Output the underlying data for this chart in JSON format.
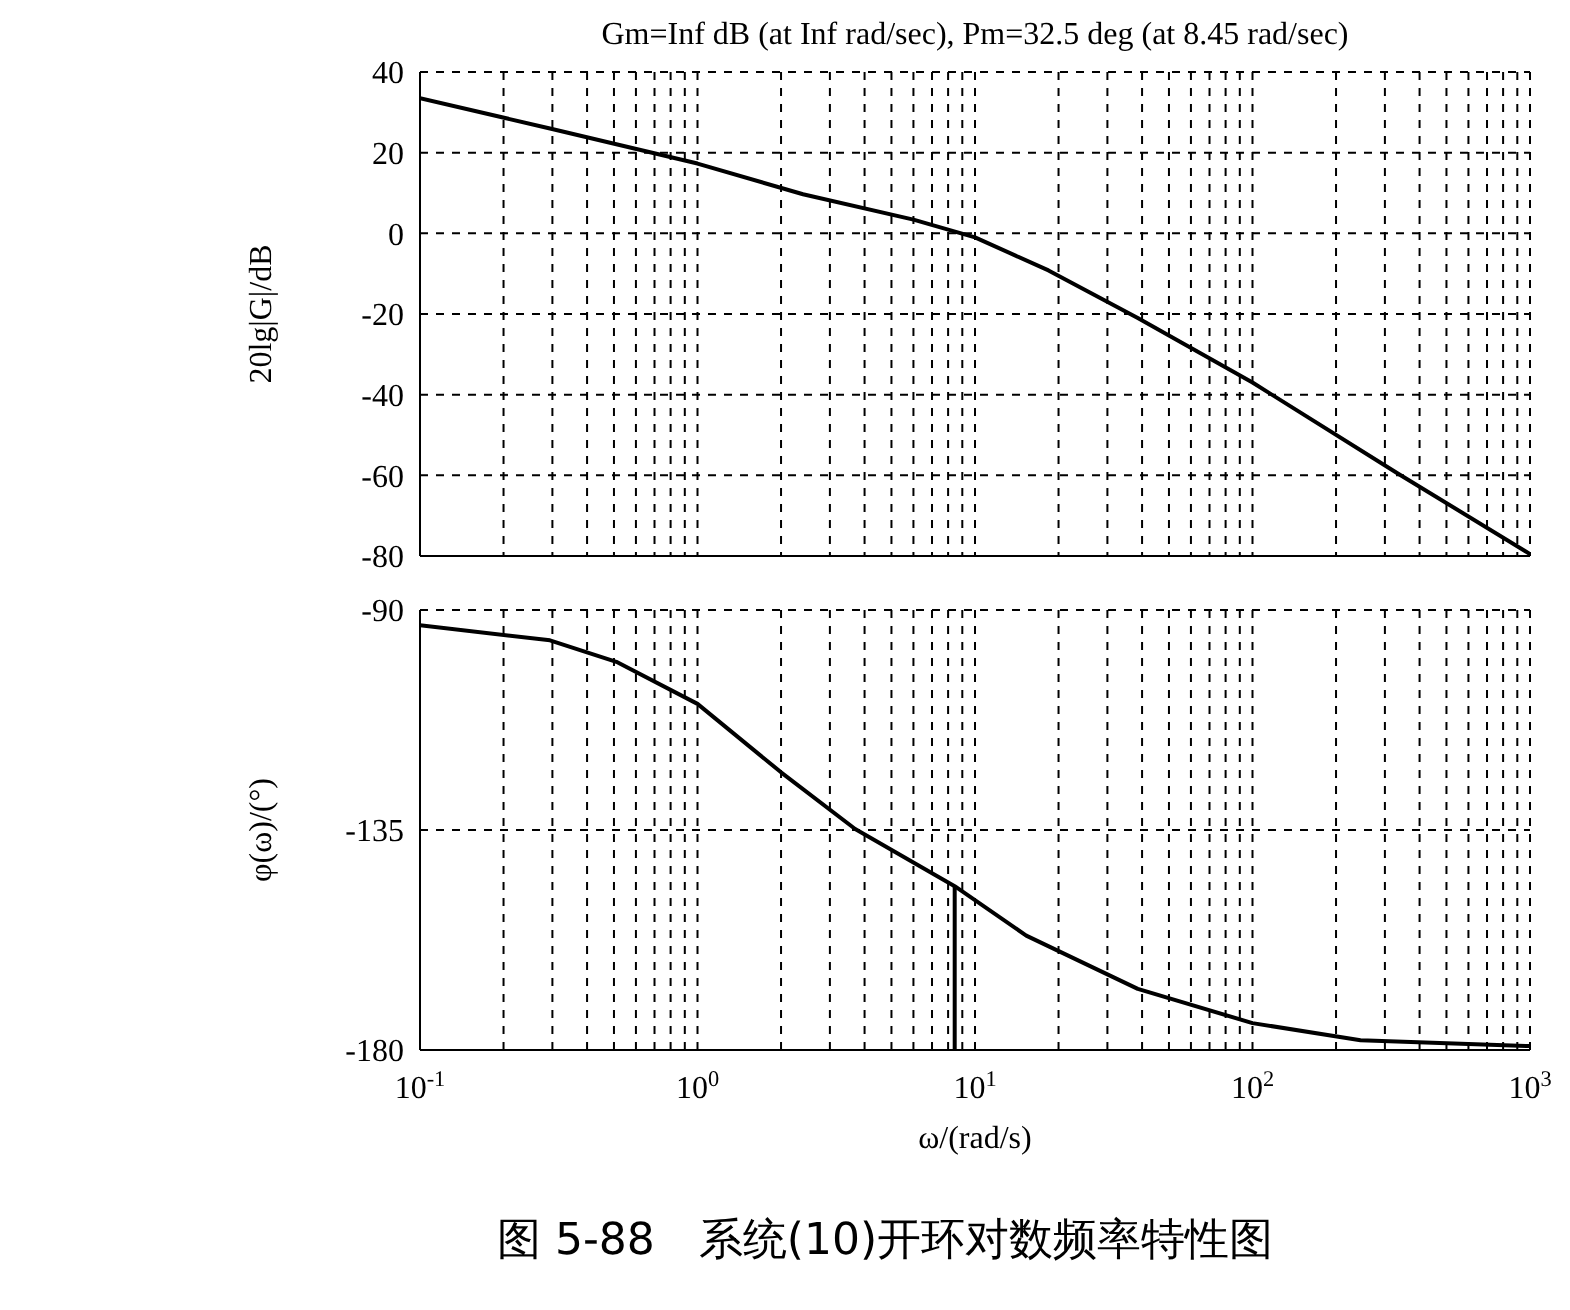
{
  "chart_data": [
    {
      "type": "line",
      "title": "Gm=Inf dB (at Inf rad/sec), Pm=32.5 deg (at 8.45 rad/sec)",
      "ylabel": "20lg|G|/dB",
      "series": [
        {
          "color": "#000000",
          "x": [
            0.1,
            0.294,
            1,
            2.4,
            6.0,
            10,
            18.4,
            38.6,
            100,
            335,
            1000
          ],
          "values": [
            33.5,
            26,
            17.3,
            9.7,
            3.4,
            -1,
            -9.2,
            -21,
            -37,
            -59.6,
            -79.5
          ]
        }
      ],
      "xlim": [
        0.1,
        1000
      ],
      "xticks": [
        {
          "value": 0.1,
          "label": null
        },
        {
          "value": 0.2,
          "label": null
        },
        {
          "value": 0.3,
          "label": null
        },
        {
          "value": 0.4,
          "label": null
        },
        {
          "value": 0.5,
          "label": null
        },
        {
          "value": 0.6,
          "label": null
        },
        {
          "value": 0.7,
          "label": null
        },
        {
          "value": 0.8,
          "label": null
        },
        {
          "value": 0.9,
          "label": null
        },
        {
          "value": 1,
          "label": null
        },
        {
          "value": 2,
          "label": null
        },
        {
          "value": 3,
          "label": null
        },
        {
          "value": 4,
          "label": null
        },
        {
          "value": 5,
          "label": null
        },
        {
          "value": 6,
          "label": null
        },
        {
          "value": 7,
          "label": null
        },
        {
          "value": 8,
          "label": null
        },
        {
          "value": 9,
          "label": null
        },
        {
          "value": 10,
          "label": null
        },
        {
          "value": 20,
          "label": null
        },
        {
          "value": 30,
          "label": null
        },
        {
          "value": 40,
          "label": null
        },
        {
          "value": 50,
          "label": null
        },
        {
          "value": 60,
          "label": null
        },
        {
          "value": 70,
          "label": null
        },
        {
          "value": 80,
          "label": null
        },
        {
          "value": 90,
          "label": null
        },
        {
          "value": 100,
          "label": null
        },
        {
          "value": 200,
          "label": null
        },
        {
          "value": 300,
          "label": null
        },
        {
          "value": 400,
          "label": null
        },
        {
          "value": 500,
          "label": null
        },
        {
          "value": 600,
          "label": null
        },
        {
          "value": 700,
          "label": null
        },
        {
          "value": 800,
          "label": null
        },
        {
          "value": 900,
          "label": null
        },
        {
          "value": 1000,
          "label": null
        }
      ],
      "ylim": [
        -80,
        40
      ],
      "yticks": [
        -80,
        -60,
        -40,
        -20,
        0,
        20,
        40
      ],
      "log": "x",
      "grid": true,
      "tick_labels": "y"
    },
    {
      "type": "line",
      "xlabel": "ω/(rad/s)",
      "ylabel": "φ(ω)/(°)",
      "annotations": [
        "图 5-88　系统(10)开环对数频率特性图"
      ],
      "series": [
        {
          "color": "#000000",
          "x": [
            0.1,
            0.294,
            0.51,
            1,
            2.0,
            3.7,
            8.45,
            15.3,
            38.6,
            100,
            245,
            1000
          ],
          "values": [
            -93.1,
            -96.2,
            -100.6,
            -109.2,
            -123.2,
            -134.8,
            -146.5,
            -156.6,
            -167.5,
            -174.5,
            -178,
            -179.2
          ]
        },
        {
          "color": "#000000",
          "x": [
            8.45,
            8.45
          ],
          "values": [
            -180,
            -146.5
          ]
        }
      ],
      "xlim": [
        0.1,
        1000
      ],
      "xticks": [
        {
          "value": 0.1,
          "label": "10$^{-1}$"
        },
        {
          "value": 0.2,
          "label": null
        },
        {
          "value": 0.3,
          "label": null
        },
        {
          "value": 0.4,
          "label": null
        },
        {
          "value": 0.5,
          "label": null
        },
        {
          "value": 0.6,
          "label": null
        },
        {
          "value": 0.7,
          "label": null
        },
        {
          "value": 0.8,
          "label": null
        },
        {
          "value": 0.9,
          "label": null
        },
        {
          "value": 1,
          "label": "10$^{0}$"
        },
        {
          "value": 2,
          "label": null
        },
        {
          "value": 3,
          "label": null
        },
        {
          "value": 4,
          "label": null
        },
        {
          "value": 5,
          "label": null
        },
        {
          "value": 6,
          "label": null
        },
        {
          "value": 7,
          "label": null
        },
        {
          "value": 8,
          "label": null
        },
        {
          "value": 9,
          "label": null
        },
        {
          "value": 10,
          "label": "10$^{1}$"
        },
        {
          "value": 20,
          "label": null
        },
        {
          "value": 30,
          "label": null
        },
        {
          "value": 40,
          "label": null
        },
        {
          "value": 50,
          "label": null
        },
        {
          "value": 60,
          "label": null
        },
        {
          "value": 70,
          "label": null
        },
        {
          "value": 80,
          "label": null
        },
        {
          "value": 90,
          "label": null
        },
        {
          "value": 100,
          "label": "10$^{2}$"
        },
        {
          "value": 200,
          "label": null
        },
        {
          "value": 300,
          "label": null
        },
        {
          "value": 400,
          "label": null
        },
        {
          "value": 500,
          "label": null
        },
        {
          "value": 600,
          "label": null
        },
        {
          "value": 700,
          "label": null
        },
        {
          "value": 800,
          "label": null
        },
        {
          "value": 900,
          "label": null
        },
        {
          "value": 1000,
          "label": "10$^{3}$"
        }
      ],
      "ylim": [
        -180,
        -90
      ],
      "yticks": [
        -180,
        -135,
        -90
      ],
      "log": "x",
      "grid": true
    }
  ]
}
